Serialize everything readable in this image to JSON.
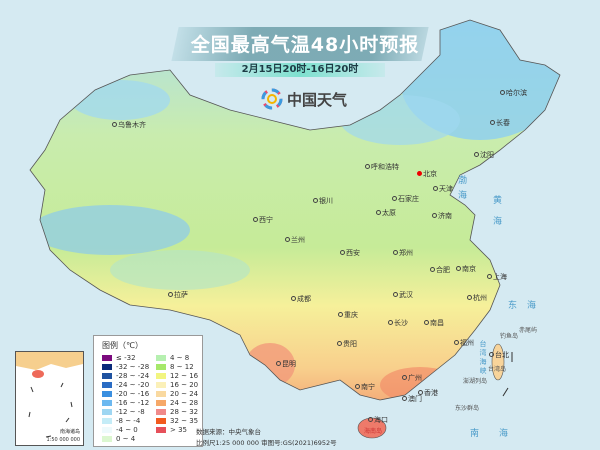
{
  "title": "全国最高气温48小时预报",
  "subtitle": "2月15日20时-16日20时",
  "logo": {
    "text": "中国天气",
    "icon": "pinwheel-logo-icon"
  },
  "cities": [
    {
      "name": "乌鲁木齐"
    },
    {
      "name": "哈尔滨"
    },
    {
      "name": "长春"
    },
    {
      "name": "沈阳"
    },
    {
      "name": "呼和浩特"
    },
    {
      "name": "北京",
      "capital": true
    },
    {
      "name": "天津"
    },
    {
      "name": "石家庄"
    },
    {
      "name": "太原"
    },
    {
      "name": "济南"
    },
    {
      "name": "银川"
    },
    {
      "name": "西宁"
    },
    {
      "name": "兰州"
    },
    {
      "name": "西安"
    },
    {
      "name": "郑州"
    },
    {
      "name": "合肥"
    },
    {
      "name": "南京"
    },
    {
      "name": "上海"
    },
    {
      "name": "武汉"
    },
    {
      "name": "杭州"
    },
    {
      "name": "成都"
    },
    {
      "name": "拉萨"
    },
    {
      "name": "重庆"
    },
    {
      "name": "长沙"
    },
    {
      "name": "南昌"
    },
    {
      "name": "福州"
    },
    {
      "name": "台北"
    },
    {
      "name": "贵阳"
    },
    {
      "name": "昆明"
    },
    {
      "name": "广州"
    },
    {
      "name": "南宁"
    },
    {
      "name": "香港"
    },
    {
      "name": "澳门"
    },
    {
      "name": "海口"
    }
  ],
  "seas": [
    "渤海",
    "黄海",
    "东海",
    "南海",
    "台湾海峡"
  ],
  "islands": [
    "钓鱼岛",
    "赤尾屿",
    "台湾岛",
    "澎湖列岛",
    "东沙群岛",
    "海南岛"
  ],
  "legend": {
    "title": "图例（℃）",
    "items": [
      {
        "label": "≤ -32",
        "color": "#7b0a7e"
      },
      {
        "label": "-32 ~ -28",
        "color": "#0a2a7a"
      },
      {
        "label": "-28 ~ -24",
        "color": "#1f52a0"
      },
      {
        "label": "-24 ~ -20",
        "color": "#2a6cc4"
      },
      {
        "label": "-20 ~ -16",
        "color": "#3a8fe0"
      },
      {
        "label": "-16 ~ -12",
        "color": "#6cb8f0"
      },
      {
        "label": "-12 ~ -8",
        "color": "#9ed6f2"
      },
      {
        "label": "-8 ~ -4",
        "color": "#c4ecf7"
      },
      {
        "label": "-4 ~ 0",
        "color": "#eefafc"
      },
      {
        "label": "0 ~ 4",
        "color": "#dcf7d0"
      },
      {
        "label": "4 ~ 8",
        "color": "#b6f0b0"
      },
      {
        "label": "8 ~ 12",
        "color": "#a6e86a"
      },
      {
        "label": "12 ~ 16",
        "color": "#f2f580"
      },
      {
        "label": "16 ~ 20",
        "color": "#fbf0b8"
      },
      {
        "label": "20 ~ 24",
        "color": "#f9d9a0"
      },
      {
        "label": "24 ~ 28",
        "color": "#f6a868"
      },
      {
        "label": "28 ~ 32",
        "color": "#f08a8a"
      },
      {
        "label": "32 ~ 35",
        "color": "#f25a1e"
      },
      {
        "label": "> 35",
        "color": "#e6505a"
      }
    ]
  },
  "inset": {
    "title": "南海诸岛",
    "scale": "1:50 000 000"
  },
  "footer": {
    "source": "数据来源：中央气象台",
    "scale": "比例尺1:25 000 000   审图号:GS(2021)6952号"
  }
}
